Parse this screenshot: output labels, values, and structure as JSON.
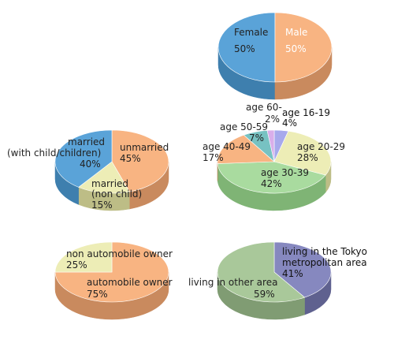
{
  "chart_data": [
    {
      "type": "pie",
      "slices": [
        {
          "label_lines": [
            "Male"
          ],
          "pct_text": "50%",
          "value": 50,
          "color": "#5AA3D8",
          "side": "#3E7FAE",
          "label_color": "#ffffff"
        },
        {
          "label_lines": [
            "Female"
          ],
          "pct_text": "50%",
          "value": 50,
          "color": "#F8B482",
          "side": "#C98A5E",
          "label_color": "#222222"
        }
      ]
    },
    {
      "type": "pie",
      "slices": [
        {
          "label_lines": [
            "unmarried"
          ],
          "pct_text": "45%",
          "value": 45,
          "color": "#F8B482",
          "side": "#C98A5E",
          "label_color": "#222222"
        },
        {
          "label_lines": [
            "married",
            "(non child)"
          ],
          "pct_text": "15%",
          "value": 15,
          "color": "#EDEDB6",
          "side": "#BDBD86",
          "label_color": "#222222"
        },
        {
          "label_lines": [
            "married",
            "(with child/children)"
          ],
          "pct_text": "40%",
          "value": 40,
          "color": "#5AA3D8",
          "side": "#3E7FAE",
          "label_color": "#222222"
        }
      ]
    },
    {
      "type": "pie",
      "slices": [
        {
          "label_lines": [
            "age 16-19"
          ],
          "pct_text": "4%",
          "value": 4,
          "color": "#A7A9EC",
          "side": "#8082C4",
          "label_color": "#111111"
        },
        {
          "label_lines": [
            "age 20-29"
          ],
          "pct_text": "28%",
          "value": 28,
          "color": "#EDEDB6",
          "side": "#BDBD86",
          "label_color": "#222222"
        },
        {
          "label_lines": [
            "age 30-39"
          ],
          "pct_text": "42%",
          "value": 42,
          "color": "#A9DB9F",
          "side": "#7FB475",
          "label_color": "#222222"
        },
        {
          "label_lines": [
            "age 40-49"
          ],
          "pct_text": "17%",
          "value": 17,
          "color": "#F8B482",
          "side": "#C98A5E",
          "label_color": "#222222"
        },
        {
          "label_lines": [
            "age 50-59"
          ],
          "pct_text": "7%",
          "value": 7,
          "color": "#77C2C2",
          "side": "#559C9C",
          "label_color": "#222222"
        },
        {
          "label_lines": [
            "age 60-"
          ],
          "pct_text": "2%",
          "value": 2,
          "color": "#D9AEEA",
          "side": "#B086C2",
          "label_color": "#222222"
        }
      ]
    },
    {
      "type": "pie",
      "slices": [
        {
          "label_lines": [
            "automobile owner"
          ],
          "pct_text": "75%",
          "value": 75,
          "color": "#F8B482",
          "side": "#C98A5E",
          "label_color": "#222222"
        },
        {
          "label_lines": [
            "non automobile owner"
          ],
          "pct_text": "25%",
          "value": 25,
          "color": "#EDEDB6",
          "side": "#BDBD86",
          "label_color": "#222222"
        }
      ]
    },
    {
      "type": "pie",
      "slices": [
        {
          "label_lines": [
            "living in the Tokyo",
            "metropolitan area"
          ],
          "pct_text": "41%",
          "value": 41,
          "color": "#8688BF",
          "side": "#5F618F",
          "label_color": "#111111"
        },
        {
          "label_lines": [
            "living in other area"
          ],
          "pct_text": "59%",
          "value": 59,
          "color": "#A9C89A",
          "side": "#809C73",
          "label_color": "#222222"
        }
      ]
    }
  ]
}
